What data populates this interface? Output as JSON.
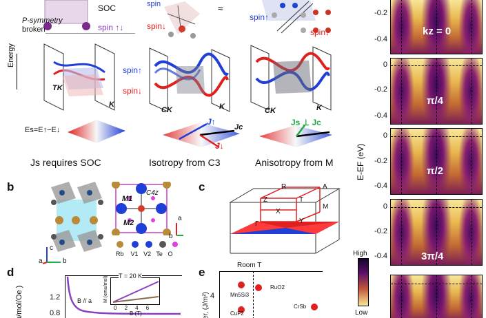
{
  "panel_a": {
    "symmetry_label_line1": "P-symmetry",
    "symmetry_label_line2": "broken",
    "soc_label": "SOC",
    "spin_label_1": "spin",
    "spin_label_2": "spin",
    "spin_label_3": "spin",
    "energy_axis": "Energy",
    "tk_label": "TK",
    "k_label_1": "K",
    "spin_up_1": "spin",
    "spin_down_1": "spin",
    "ck_label_1": "CK",
    "k_label_2": "K",
    "ck_label_2": "CK",
    "k_label_3": "K",
    "es_formula": "Es=E↑−E↓",
    "caption_1": "Js requires SOC",
    "caption_2": "Isotropy from C3",
    "caption_3": "Anisotropy from M",
    "j_up": "J↑",
    "j_c": "Jc",
    "j_down": "J↓",
    "j_perp": "Js ⊥ Jc"
  },
  "panel_b": {
    "letter": "b",
    "m1": "M1",
    "c4z": "C4z",
    "m2": "M2",
    "axis_a": "a",
    "axis_b": "b",
    "axis_c": "c",
    "legend": [
      "Rb",
      "V1",
      "V2",
      "Te",
      "O"
    ]
  },
  "panel_c": {
    "letter": "c",
    "points": [
      "R",
      "A",
      "Z",
      "T",
      "X",
      "M",
      "Y",
      "Γ"
    ]
  },
  "panel_d": {
    "letter": "d",
    "ylabel": "u/mol/Oe )",
    "ytick_1": "1.2",
    "ytick_2": "0.8",
    "inset_title": "T = 20 K",
    "inset_xlabel": "B (T)",
    "inset_ylabel": "M (emu/mol)",
    "inset_xticks": [
      "0",
      "2",
      "4",
      "6"
    ],
    "field_label": "B // a"
  },
  "panel_e": {
    "letter": "e",
    "room_t": "Room T",
    "ylabel": "er, (J/m²)",
    "ytick": "4",
    "materials": [
      "RuO2",
      "Mn5Si3",
      "CrSb",
      "CuF2"
    ]
  },
  "panel_arpes": {
    "ylabel": "E-EF (eV)",
    "panels": [
      {
        "label": "kz = 0",
        "ticks": [
          "-0.2",
          "-0.4"
        ]
      },
      {
        "label": "π/4",
        "ticks": [
          "0",
          "-0.2",
          "-0.4"
        ]
      },
      {
        "label": "π/2",
        "ticks": [
          "0",
          "-0.2",
          "-0.4"
        ]
      },
      {
        "label": "3π/4",
        "ticks": [
          "0",
          "-0.2",
          "-0.4"
        ]
      }
    ],
    "colorbar_high": "High",
    "colorbar_low": "Low",
    "colors": {
      "dark": "#2a0845",
      "mid": "#c25a3a",
      "light": "#f7e89a"
    }
  },
  "colors": {
    "spin_up": "#1f3fd6",
    "spin_down": "#e0201f",
    "purple": "#8a3fbf"
  }
}
